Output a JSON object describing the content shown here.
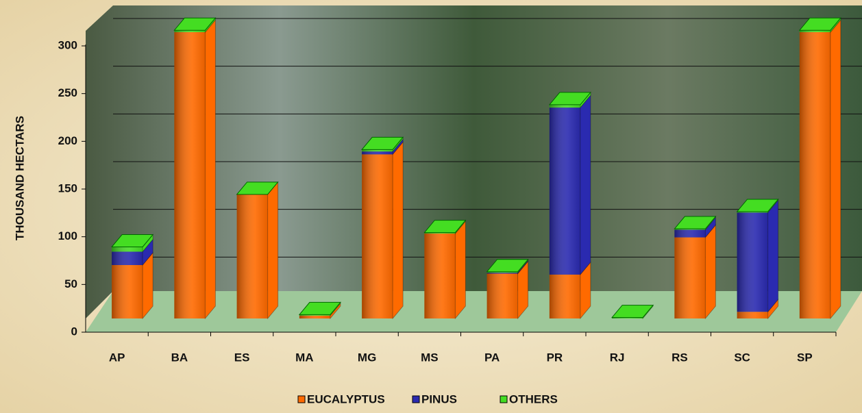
{
  "chart_data": {
    "type": "bar3d_stacked",
    "categories": [
      "AP",
      "BA",
      "ES",
      "MA",
      "MG",
      "MS",
      "PA",
      "PR",
      "RJ",
      "RS",
      "SC",
      "SP"
    ],
    "series": [
      {
        "name": "EUCALYPTUS",
        "color": "#ff6a00",
        "values": [
          56,
          300,
          130,
          3,
          172,
          89,
          47,
          46,
          0,
          85,
          7,
          300
        ]
      },
      {
        "name": "PINUS",
        "color": "#2a2ab0",
        "values": [
          14,
          0,
          0,
          0,
          3,
          0,
          1,
          175,
          0,
          8,
          104,
          0
        ]
      },
      {
        "name": "OTHERS",
        "color": "#44dd22",
        "values": [
          5,
          2,
          0,
          1,
          2,
          1,
          1,
          3,
          1,
          1,
          1,
          2
        ]
      }
    ],
    "ylabel": "THOUSAND HECTARS",
    "ylim": [
      0,
      300
    ],
    "yticks": [
      0,
      50,
      100,
      150,
      200,
      250,
      300
    ],
    "grid": true,
    "legend": "bottom"
  }
}
